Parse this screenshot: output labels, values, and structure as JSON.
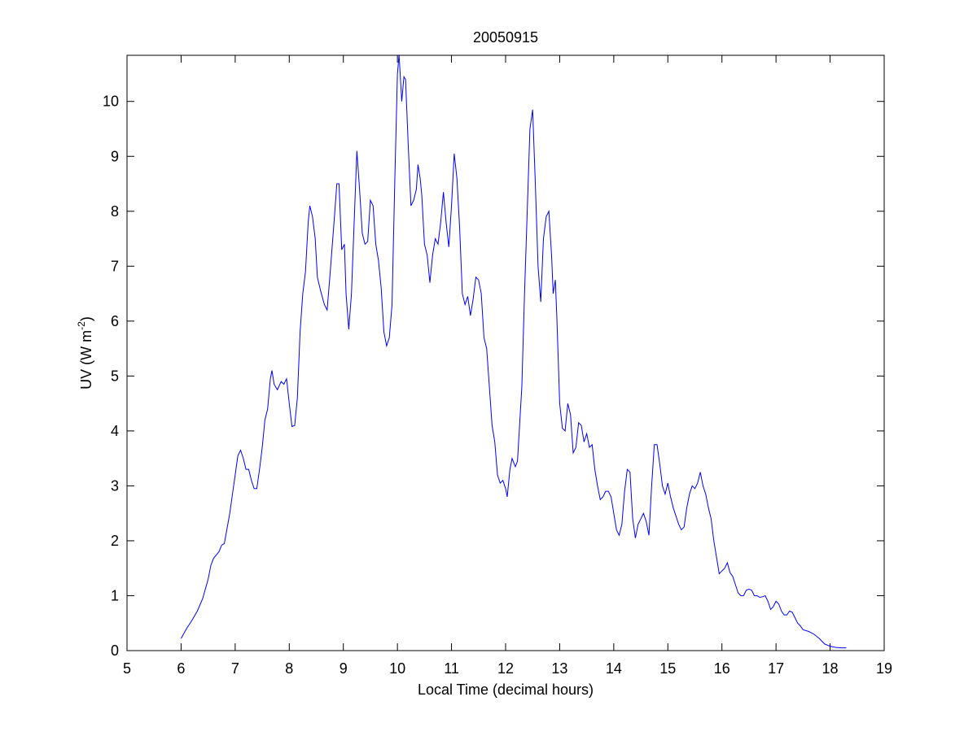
{
  "chart_data": {
    "type": "line",
    "title": "20050915",
    "xlabel": "Local Time (decimal hours)",
    "ylabel": {
      "text": "UV (W m",
      "superscript": "-2",
      "suffix": ")"
    },
    "color": "#0000ff",
    "xlim": [
      5,
      19
    ],
    "xticks": [
      5,
      6,
      7,
      8,
      9,
      10,
      11,
      12,
      13,
      14,
      15,
      16,
      17,
      18,
      19
    ],
    "ylim": [
      0,
      10.84
    ],
    "yticks": [
      0,
      1,
      2,
      3,
      4,
      5,
      6,
      7,
      8,
      9,
      10
    ],
    "x": [
      6.0,
      6.1,
      6.2,
      6.3,
      6.4,
      6.5,
      6.55,
      6.6,
      6.7,
      6.75,
      6.8,
      6.9,
      7.0,
      7.05,
      7.1,
      7.15,
      7.2,
      7.25,
      7.3,
      7.35,
      7.4,
      7.45,
      7.5,
      7.55,
      7.6,
      7.65,
      7.68,
      7.72,
      7.78,
      7.85,
      7.9,
      7.95,
      8.0,
      8.05,
      8.1,
      8.15,
      8.2,
      8.25,
      8.3,
      8.35,
      8.38,
      8.43,
      8.48,
      8.52,
      8.58,
      8.65,
      8.7,
      8.75,
      8.82,
      8.88,
      8.92,
      8.97,
      9.02,
      9.05,
      9.1,
      9.15,
      9.2,
      9.25,
      9.3,
      9.35,
      9.4,
      9.45,
      9.5,
      9.55,
      9.6,
      9.65,
      9.7,
      9.75,
      9.8,
      9.85,
      9.9,
      9.95,
      10.0,
      10.03,
      10.08,
      10.12,
      10.15,
      10.2,
      10.25,
      10.3,
      10.35,
      10.38,
      10.42,
      10.45,
      10.5,
      10.55,
      10.6,
      10.65,
      10.7,
      10.75,
      10.8,
      10.85,
      10.9,
      10.95,
      11.0,
      11.05,
      11.1,
      11.15,
      11.2,
      11.25,
      11.3,
      11.35,
      11.4,
      11.45,
      11.5,
      11.55,
      11.6,
      11.65,
      11.7,
      11.75,
      11.8,
      11.85,
      11.9,
      11.95,
      12.0,
      12.03,
      12.08,
      12.12,
      12.18,
      12.22,
      12.3,
      12.35,
      12.4,
      12.45,
      12.5,
      12.55,
      12.6,
      12.65,
      12.7,
      12.75,
      12.8,
      12.85,
      12.88,
      12.92,
      12.95,
      13.0,
      13.05,
      13.1,
      13.15,
      13.2,
      13.25,
      13.3,
      13.35,
      13.4,
      13.45,
      13.5,
      13.55,
      13.6,
      13.65,
      13.7,
      13.75,
      13.8,
      13.85,
      13.9,
      13.95,
      14.0,
      14.05,
      14.1,
      14.15,
      14.2,
      14.25,
      14.3,
      14.35,
      14.4,
      14.45,
      14.5,
      14.55,
      14.6,
      14.65,
      14.7,
      14.75,
      14.8,
      14.85,
      14.9,
      14.95,
      15.0,
      15.05,
      15.1,
      15.15,
      15.2,
      15.25,
      15.3,
      15.35,
      15.4,
      15.45,
      15.5,
      15.55,
      15.6,
      15.65,
      15.7,
      15.75,
      15.8,
      15.85,
      15.9,
      15.95,
      16.0,
      16.05,
      16.1,
      16.15,
      16.2,
      16.25,
      16.3,
      16.35,
      16.4,
      16.45,
      16.5,
      16.55,
      16.6,
      16.65,
      16.7,
      16.75,
      16.8,
      16.85,
      16.9,
      16.95,
      17.0,
      17.05,
      17.1,
      17.15,
      17.2,
      17.25,
      17.3,
      17.35,
      17.4,
      17.45,
      17.5,
      17.6,
      17.7,
      17.8,
      17.9,
      18.0,
      18.1,
      18.2,
      18.3
    ],
    "values": [
      0.22,
      0.4,
      0.55,
      0.72,
      0.95,
      1.3,
      1.55,
      1.68,
      1.8,
      1.92,
      1.95,
      2.5,
      3.2,
      3.55,
      3.65,
      3.5,
      3.3,
      3.3,
      3.1,
      2.95,
      2.95,
      3.3,
      3.7,
      4.2,
      4.4,
      4.95,
      5.1,
      4.85,
      4.75,
      4.9,
      4.85,
      4.95,
      4.5,
      4.08,
      4.1,
      4.6,
      5.8,
      6.5,
      6.9,
      7.8,
      8.1,
      7.9,
      7.5,
      6.8,
      6.55,
      6.3,
      6.2,
      6.8,
      7.7,
      8.5,
      8.5,
      7.3,
      7.4,
      6.5,
      5.85,
      6.5,
      7.8,
      9.1,
      8.4,
      7.6,
      7.4,
      7.45,
      8.2,
      8.1,
      7.4,
      7.1,
      6.6,
      5.8,
      5.55,
      5.7,
      6.3,
      8.5,
      10.5,
      10.85,
      10.0,
      10.45,
      10.4,
      9.2,
      8.1,
      8.2,
      8.4,
      8.85,
      8.6,
      8.3,
      7.4,
      7.2,
      6.7,
      7.2,
      7.5,
      7.4,
      7.8,
      8.35,
      7.8,
      7.35,
      8.1,
      9.05,
      8.6,
      7.7,
      6.5,
      6.3,
      6.45,
      6.1,
      6.4,
      6.8,
      6.75,
      6.5,
      5.7,
      5.5,
      4.8,
      4.1,
      3.8,
      3.2,
      3.05,
      3.1,
      2.95,
      2.8,
      3.3,
      3.5,
      3.35,
      3.45,
      4.8,
      6.5,
      8.0,
      9.5,
      9.85,
      8.5,
      7.0,
      6.35,
      7.5,
      7.9,
      8.0,
      7.2,
      6.5,
      6.75,
      6.0,
      4.5,
      4.05,
      4.0,
      4.5,
      4.3,
      3.6,
      3.7,
      4.15,
      4.1,
      3.8,
      3.95,
      3.7,
      3.75,
      3.3,
      3.0,
      2.75,
      2.8,
      2.9,
      2.9,
      2.8,
      2.5,
      2.2,
      2.1,
      2.3,
      2.9,
      3.3,
      3.25,
      2.4,
      2.05,
      2.3,
      2.4,
      2.5,
      2.35,
      2.1,
      3.0,
      3.75,
      3.75,
      3.4,
      3.0,
      2.85,
      3.05,
      2.8,
      2.6,
      2.45,
      2.3,
      2.2,
      2.25,
      2.6,
      2.85,
      3.0,
      2.95,
      3.05,
      3.25,
      3.0,
      2.85,
      2.6,
      2.4,
      2.0,
      1.7,
      1.4,
      1.45,
      1.5,
      1.6,
      1.42,
      1.35,
      1.2,
      1.05,
      1.0,
      1.0,
      1.1,
      1.12,
      1.1,
      1.0,
      1.0,
      0.97,
      0.98,
      1.0,
      0.9,
      0.75,
      0.8,
      0.9,
      0.85,
      0.72,
      0.65,
      0.65,
      0.72,
      0.7,
      0.6,
      0.5,
      0.45,
      0.38,
      0.35,
      0.3,
      0.22,
      0.12,
      0.08,
      0.06,
      0.05,
      0.05
    ]
  }
}
